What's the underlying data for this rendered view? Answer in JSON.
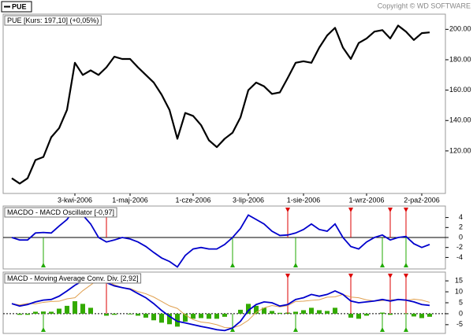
{
  "header": {
    "copyright": "Copyright © WD SOFTWARE"
  },
  "chart_data": [
    {
      "type": "line",
      "title": "PUE [Kurs: 197,10] (+0,05%)",
      "categories": [
        null,
        null,
        null,
        null,
        null,
        null,
        null,
        null,
        "3-kwi-2006",
        null,
        null,
        null,
        null,
        null,
        null,
        "1-maj-2006",
        null,
        null,
        null,
        null,
        null,
        null,
        null,
        "1-cze-2006",
        null,
        null,
        null,
        null,
        null,
        null,
        "3-lip-2006",
        null,
        null,
        null,
        null,
        null,
        null,
        "1-sie-2006",
        null,
        null,
        null,
        null,
        null,
        null,
        null,
        "1-wrz-2006",
        null,
        null,
        null,
        null,
        null,
        null,
        "2-paź-2006",
        null
      ],
      "series": [
        {
          "name": "PUE",
          "color": "#000000",
          "values": [
            102,
            98.5,
            102,
            114,
            116,
            129,
            135,
            147,
            178,
            170,
            173,
            170,
            175,
            182,
            180.5,
            180.5,
            175,
            170,
            165,
            157,
            147,
            128,
            145,
            143,
            137,
            127,
            122.5,
            128,
            132,
            142,
            160,
            165,
            162.5,
            157.5,
            158.5,
            168,
            178,
            179,
            178,
            188,
            196,
            201,
            188,
            180.5,
            191,
            194,
            198.5,
            199.5,
            194,
            202.5,
            198.5,
            193,
            197.5,
            198
          ]
        }
      ],
      "ylim": [
        92,
        210
      ],
      "yticks": [
        {
          "value": 120,
          "label": "120.00"
        },
        {
          "value": 140,
          "label": "140.00"
        },
        {
          "value": 160,
          "label": "160.00"
        },
        {
          "value": 180,
          "label": "180.00"
        },
        {
          "value": 200,
          "label": "200.00"
        }
      ]
    },
    {
      "type": "oscillator",
      "title": "MACDO - MACD Oscillator [-0,97]",
      "color": "#0000cc",
      "values": [
        0,
        -0.5,
        -0.5,
        0.9,
        1,
        0.9,
        2.3,
        3.6,
        5.7,
        4.5,
        2.7,
        0,
        -0.9,
        -0.5,
        0,
        -0.3,
        -0.9,
        -1.8,
        -3,
        -4.1,
        -4.8,
        -5.9,
        -3.6,
        -2.3,
        -2,
        -2.3,
        -2.3,
        -1.4,
        0,
        1.8,
        4.5,
        3.6,
        2.7,
        1.25,
        0.4,
        0.5,
        0.9,
        1.6,
        2.7,
        1.6,
        1.25,
        2.7,
        0,
        -1.8,
        -2.3,
        -0.9,
        0,
        0.5,
        -0.5,
        0,
        0.2,
        -1.25,
        -2,
        -1.4
      ],
      "ylim": [
        -6.3,
        6.3
      ],
      "yticks": [
        4,
        2,
        0,
        -2,
        -4
      ],
      "sell_signals": [
        12,
        35,
        43,
        48,
        50
      ],
      "buy_signals": [
        4,
        28,
        36,
        47,
        50
      ],
      "sell_color": "#dd0000",
      "buy_color": "#22aa00"
    },
    {
      "type": "macd",
      "title": "MACD - Moving Average Conv. Div. [2,92]",
      "series": [
        {
          "color": "#0000cc",
          "values": [
            4.6,
            3.5,
            4.2,
            5.4,
            6.2,
            6.5,
            8,
            10.4,
            13,
            15,
            15.8,
            15.8,
            14.2,
            12.7,
            11.9,
            11.2,
            9.2,
            7.3,
            4.6,
            1.5,
            -1.2,
            -3.5,
            -4.2,
            -5,
            -5.8,
            -6.5,
            -7.3,
            -7.7,
            -6.5,
            -3.5,
            1.5,
            4.2,
            5.4,
            5,
            3.5,
            4.2,
            6.5,
            7.3,
            8.8,
            8,
            8.8,
            10.4,
            8.8,
            5.8,
            5,
            5.4,
            5.8,
            6.5,
            5.8,
            6.5,
            6.2,
            5.4,
            4.2,
            3.8
          ]
        },
        {
          "color": "#e0a050",
          "values": [
            4.6,
            4,
            4.7,
            4.5,
            5.2,
            5.6,
            5.7,
            6.8,
            7.3,
            10.5,
            13.1,
            15.8,
            15.1,
            13.2,
            11.9,
            11.5,
            10.1,
            9.1,
            7.6,
            5.6,
            3.6,
            2.4,
            -0.6,
            -2.7,
            -3.8,
            -4.2,
            -5,
            -6.3,
            -6.5,
            -5.3,
            -3,
            0.6,
            2.7,
            3.75,
            3.1,
            3.7,
            5.6,
            5.7,
            6.1,
            6.4,
            7.55,
            7.7,
            8.8,
            7.6,
            7.3,
            6.3,
            5.8,
            6,
            6.3,
            6.5,
            6,
            6.65,
            6.2,
            5.2
          ]
        }
      ],
      "histogram_color": "#33aa00",
      "ylim": [
        -9,
        19
      ],
      "yticks": [
        15,
        10,
        5,
        0,
        -5
      ]
    }
  ]
}
